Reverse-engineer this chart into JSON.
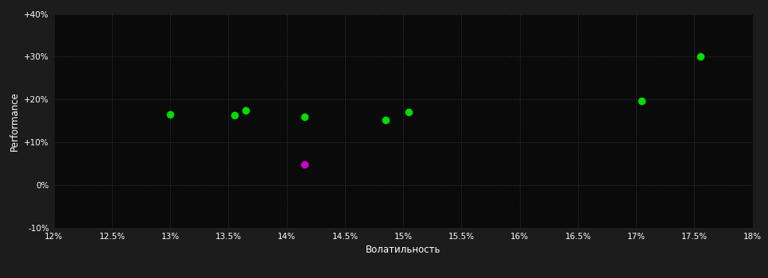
{
  "background_color": "#1c1c1c",
  "plot_bg_color": "#0a0a0a",
  "grid_color": "#3a3a3a",
  "text_color": "#ffffff",
  "xlabel": "Волатильность",
  "ylabel": "Performance",
  "xlim": [
    0.12,
    0.18
  ],
  "ylim": [
    -0.1,
    0.4
  ],
  "xticks": [
    0.12,
    0.125,
    0.13,
    0.135,
    0.14,
    0.145,
    0.15,
    0.155,
    0.16,
    0.165,
    0.17,
    0.175,
    0.18
  ],
  "yticks": [
    -0.1,
    0.0,
    0.1,
    0.2,
    0.3,
    0.4
  ],
  "ytick_labels": [
    "-10%",
    "0%",
    "+10%",
    "+20%",
    "+30%",
    "+40%"
  ],
  "xtick_labels": [
    "12%",
    "12.5%",
    "13%",
    "13.5%",
    "14%",
    "14.5%",
    "15%",
    "15.5%",
    "16%",
    "16.5%",
    "17%",
    "17.5%",
    "18%"
  ],
  "green_points": [
    [
      0.13,
      0.165
    ],
    [
      0.1355,
      0.163
    ],
    [
      0.1365,
      0.175
    ],
    [
      0.1415,
      0.16
    ],
    [
      0.1485,
      0.153
    ],
    [
      0.1505,
      0.17
    ],
    [
      0.1705,
      0.197
    ],
    [
      0.1755,
      0.3
    ]
  ],
  "magenta_points": [
    [
      0.1415,
      0.048
    ]
  ],
  "green_color": "#00dd00",
  "magenta_color": "#cc00cc",
  "marker_size": 35,
  "marker_style": "o"
}
